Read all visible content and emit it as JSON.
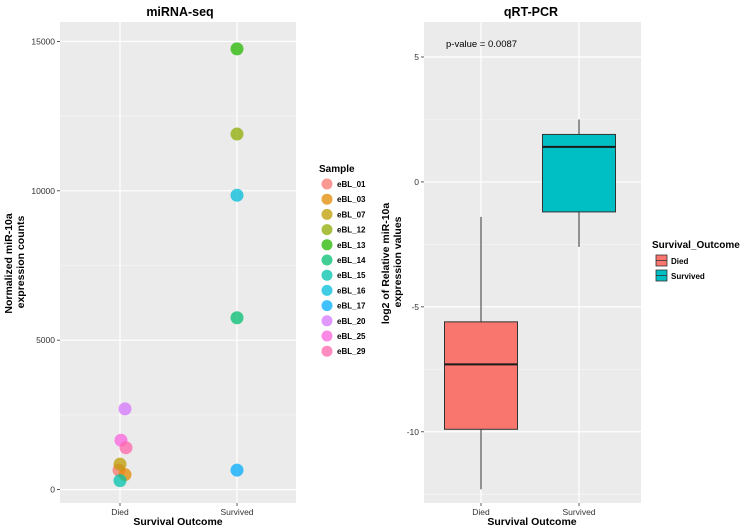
{
  "chart_data": [
    {
      "type": "scatter",
      "title": "miRNA-seq",
      "xlabel": "Survival Outcome",
      "ylabel": "Normalized miR-10a expression counts",
      "ylabel_lines": [
        "Normalized miR-10a",
        "expression counts"
      ],
      "categories": [
        "Died",
        "Survived"
      ],
      "ylim": [
        -450,
        15650
      ],
      "yticks": [
        0,
        5000,
        10000,
        15000
      ],
      "ytick_labels": [
        "0",
        "5000",
        "10000",
        "15000"
      ],
      "legend_title": "Sample",
      "legend_position": "right",
      "series": [
        {
          "name": "eBL_01",
          "color": "#F8766D",
          "x": "Died",
          "y": 650
        },
        {
          "name": "eBL_03",
          "color": "#E18A00",
          "x": "Died",
          "y": 500
        },
        {
          "name": "eBL_07",
          "color": "#BE9C00",
          "x": "Died",
          "y": 850
        },
        {
          "name": "eBL_12",
          "color": "#8CAB00",
          "x": "Survived",
          "y": 11900
        },
        {
          "name": "eBL_13",
          "color": "#24B700",
          "x": "Survived",
          "y": 14750
        },
        {
          "name": "eBL_14",
          "color": "#00BE70",
          "x": "Survived",
          "y": 5750
        },
        {
          "name": "eBL_15",
          "color": "#00C1AB",
          "x": "Died",
          "y": 300
        },
        {
          "name": "eBL_16",
          "color": "#00BBDA",
          "x": "Survived",
          "y": 9850
        },
        {
          "name": "eBL_17",
          "color": "#00ACFC",
          "x": "Survived",
          "y": 650
        },
        {
          "name": "eBL_20",
          "color": "#D575FE",
          "x": "Died",
          "y": 2700
        },
        {
          "name": "eBL_25",
          "color": "#F962DD",
          "x": "Died",
          "y": 1650
        },
        {
          "name": "eBL_29",
          "color": "#FF65AC",
          "x": "Died",
          "y": 1400
        }
      ]
    },
    {
      "type": "boxplot",
      "title": "qRT-PCR",
      "xlabel": "Survival Outcome",
      "ylabel": "log2 of Relative miR-10a expression values",
      "ylabel_lines": [
        "log2 of Relative miR-10a",
        "expression values"
      ],
      "categories": [
        "Died",
        "Survived"
      ],
      "ylim": [
        -12.85,
        6.4
      ],
      "yticks": [
        -10,
        -5,
        0,
        5
      ],
      "ytick_labels": [
        "-10",
        "-5",
        "0",
        "5"
      ],
      "annotation": "p-value = 0.0087",
      "legend_title": "Survival_Outcome",
      "legend_position": "right",
      "boxes": [
        {
          "name": "Died",
          "color": "#F8766D",
          "min": -12.3,
          "q1": -9.9,
          "median": -7.3,
          "q3": -5.6,
          "max": -1.4
        },
        {
          "name": "Survived",
          "color": "#00BFC4",
          "min": -2.6,
          "q1": -1.2,
          "median": 1.4,
          "q3": 1.9,
          "max": 2.5
        }
      ]
    }
  ]
}
